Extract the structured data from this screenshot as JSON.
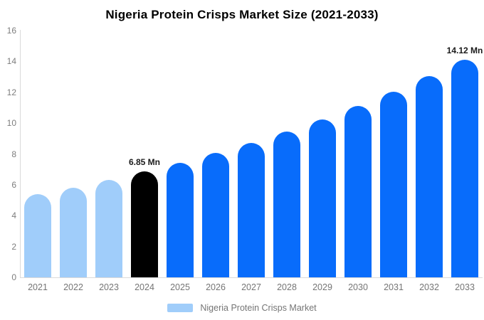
{
  "title": "Nigeria Protein Crisps Market Size (2021-2033)",
  "chart_data": {
    "type": "bar",
    "title": "Nigeria Protein Crisps Market Size (2021-2033)",
    "xlabel": "",
    "ylabel": "",
    "ylim": [
      0,
      16
    ],
    "yticks": [
      0,
      2,
      4,
      6,
      8,
      10,
      12,
      14,
      16
    ],
    "grid": false,
    "categories": [
      "2021",
      "2022",
      "2023",
      "2024",
      "2025",
      "2026",
      "2027",
      "2028",
      "2029",
      "2030",
      "2031",
      "2032",
      "2033"
    ],
    "series": [
      {
        "name": "Nigeria Protein Crisps Market",
        "values": [
          5.38,
          5.83,
          6.32,
          6.85,
          7.42,
          8.05,
          8.72,
          9.45,
          10.24,
          11.1,
          12.03,
          13.03,
          14.12
        ]
      }
    ],
    "bar_colors": [
      "#A0CDFA",
      "#A0CDFA",
      "#A0CDFA",
      "#000000",
      "#086CFB",
      "#086CFB",
      "#086CFB",
      "#086CFB",
      "#086CFB",
      "#086CFB",
      "#086CFB",
      "#086CFB",
      "#086CFB"
    ],
    "annotations": [
      {
        "category": "2024",
        "text": "6.85 Mn"
      },
      {
        "category": "2033",
        "text": "14.12 Mn"
      }
    ],
    "legend": [
      {
        "label": "Nigeria Protein Crisps Market",
        "color": "#A0CDFA"
      }
    ],
    "legend_position": "bottom",
    "colors": {
      "historical": "#A0CDFA",
      "base_year": "#000000",
      "forecast": "#086CFB",
      "axis_line": "#dadada",
      "tick_text": "#7d7d7d",
      "label_text": "#757575"
    }
  }
}
